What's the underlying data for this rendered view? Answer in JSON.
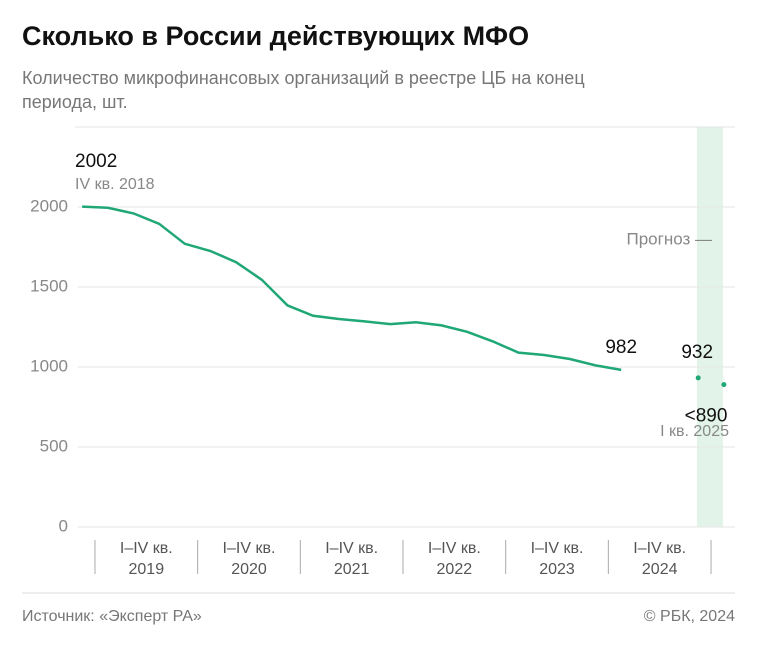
{
  "chart_data": {
    "type": "line",
    "title": "Сколько в России действующих МФО",
    "subtitle": "Количество микрофинансовых организаций в реестре ЦБ на конец периода, шт.",
    "source": "Источник: «Эксперт РА»",
    "copyright": "© РБК, 2024",
    "forecast_label": "Прогноз —",
    "xlim": [
      2018.75,
      2025.25
    ],
    "ylim": [
      0,
      2500
    ],
    "yticks": [
      0,
      500,
      1000,
      1500,
      2000
    ],
    "grid": true,
    "x_groups": [
      {
        "period": "I–IV кв.",
        "year": "2019"
      },
      {
        "period": "I–IV кв.",
        "year": "2020"
      },
      {
        "period": "I–IV кв.",
        "year": "2021"
      },
      {
        "period": "I–IV кв.",
        "year": "2022"
      },
      {
        "period": "I–IV кв.",
        "year": "2023"
      },
      {
        "period": "I–IV кв.",
        "year": "2024"
      }
    ],
    "series": [
      {
        "color": "#1fa776",
        "x": [
          2018.875,
          2019.125,
          2019.375,
          2019.625,
          2019.875,
          2020.125,
          2020.375,
          2020.625,
          2020.875,
          2021.125,
          2021.375,
          2021.625,
          2021.875,
          2022.125,
          2022.375,
          2022.625,
          2022.875,
          2023.125,
          2023.375,
          2023.625,
          2023.875,
          2024.125
        ],
        "values": [
          2002,
          1995,
          1960,
          1895,
          1770,
          1725,
          1655,
          1545,
          1385,
          1320,
          1300,
          1285,
          1268,
          1280,
          1260,
          1220,
          1160,
          1090,
          1075,
          1050,
          1010,
          982
        ],
        "value_labels": [
          "2002",
          null,
          null,
          null,
          null,
          null,
          null,
          null,
          null,
          null,
          null,
          null,
          null,
          null,
          null,
          null,
          null,
          null,
          null,
          null,
          null,
          "982"
        ],
        "first_note": "IV кв. 2018"
      },
      {
        "color": "#1fa776",
        "style": "dots",
        "x": [
          2024.875,
          2025.125
        ],
        "values": [
          932,
          890
        ],
        "value_labels": [
          "932",
          "<890"
        ],
        "last_note": "I кв. 2025"
      }
    ]
  }
}
